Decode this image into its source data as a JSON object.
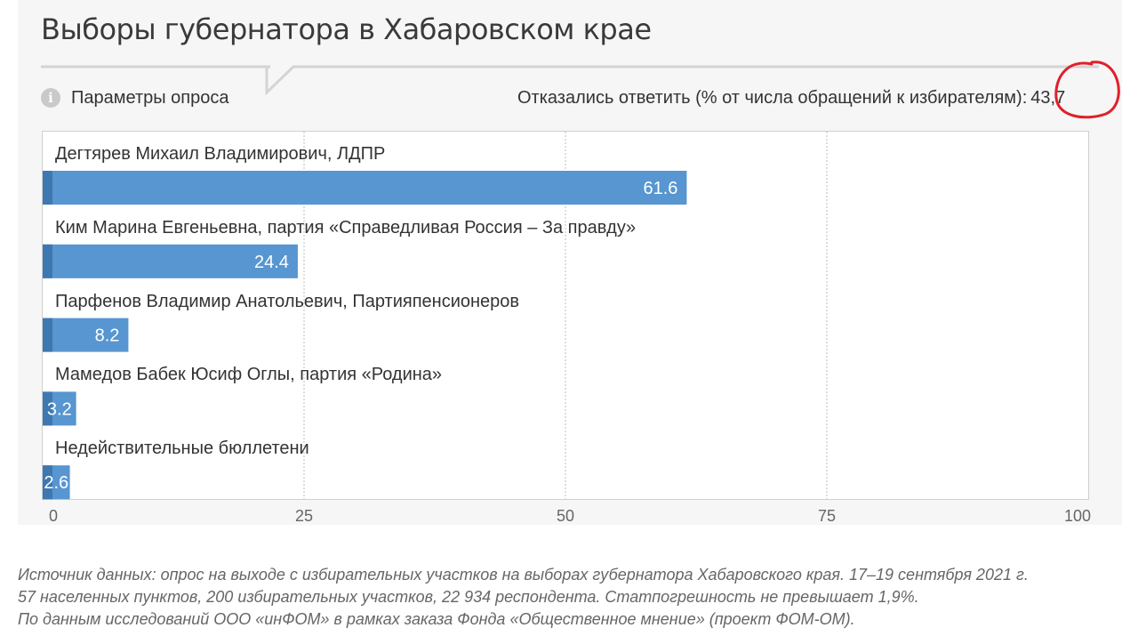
{
  "title": "Выборы губернатора в Хабаровском крае",
  "params_label": "Параметры опроса",
  "refused": {
    "label": "Отказались ответить (% от числа обращений к избирателям):",
    "value": "43,7"
  },
  "chart_data": {
    "type": "bar",
    "orientation": "horizontal",
    "categories": [
      "Дегтярев Михаил Владимирович, ЛДПР",
      "Ким Марина Евгеньевна, партия «Справедливая Россия – За правду»",
      "Парфенов Владимир Анатольевич, Партияпенсионеров",
      "Мамедов Бабек Юсиф Оглы, партия «Родина»",
      "Недействительные бюллетени"
    ],
    "values": [
      61.6,
      24.4,
      8.2,
      3.2,
      2.6
    ],
    "value_labels": [
      "61.6",
      "24.4",
      "8.2",
      "3.2",
      "2.6"
    ],
    "xlim": [
      0,
      100
    ],
    "x_ticks": [
      0,
      25,
      50,
      75,
      100
    ],
    "grid": true,
    "bar_color": "#5796d0",
    "bar_accent_color": "#3f78b0"
  },
  "source_lines": [
    "Источник данных: опрос на выходе с избирательных участков на выборах губернатора Хабаровского края. 17–19 сентября 2021 г.",
    "57 населенных пунктов, 200 избирательных участков, 22 934 респондента. Статпогрешность не превышает 1,9%.",
    "По данным исследований ООО «инФОМ» в рамках заказа Фонда «Общественное мнение» (проект ФОМ-ОМ)."
  ],
  "annotation_color": "#e0202a"
}
